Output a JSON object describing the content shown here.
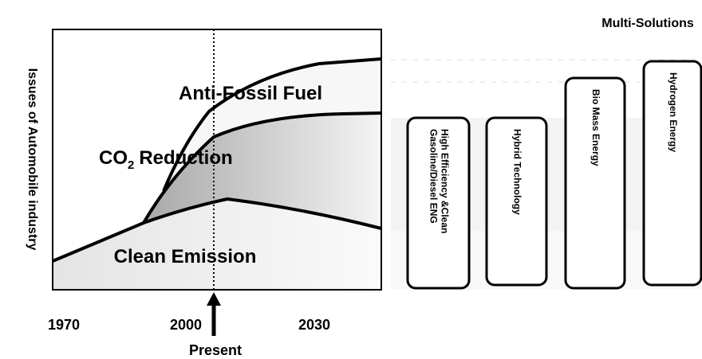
{
  "axis_label": "Issues of Automobile industry",
  "solutions_title": "Multi-Solutions",
  "regions": {
    "anti_fossil": "Anti-Fossil Fuel",
    "co2": {
      "main": "CO",
      "sub": "2",
      "rest": "Reduction"
    },
    "clean": "Clean Emission"
  },
  "years": [
    "1970",
    "2000",
    "2030"
  ],
  "present": "Present",
  "solutions": [
    {
      "lines": [
        "High Efficiency &Clean",
        "Gasoline/Diesel ENG"
      ]
    },
    {
      "lines": [
        "Hybrid Technology"
      ]
    },
    {
      "lines": [
        "Bio Mass Energy"
      ]
    },
    {
      "lines": [
        "Hydrogen Energy"
      ]
    }
  ]
}
